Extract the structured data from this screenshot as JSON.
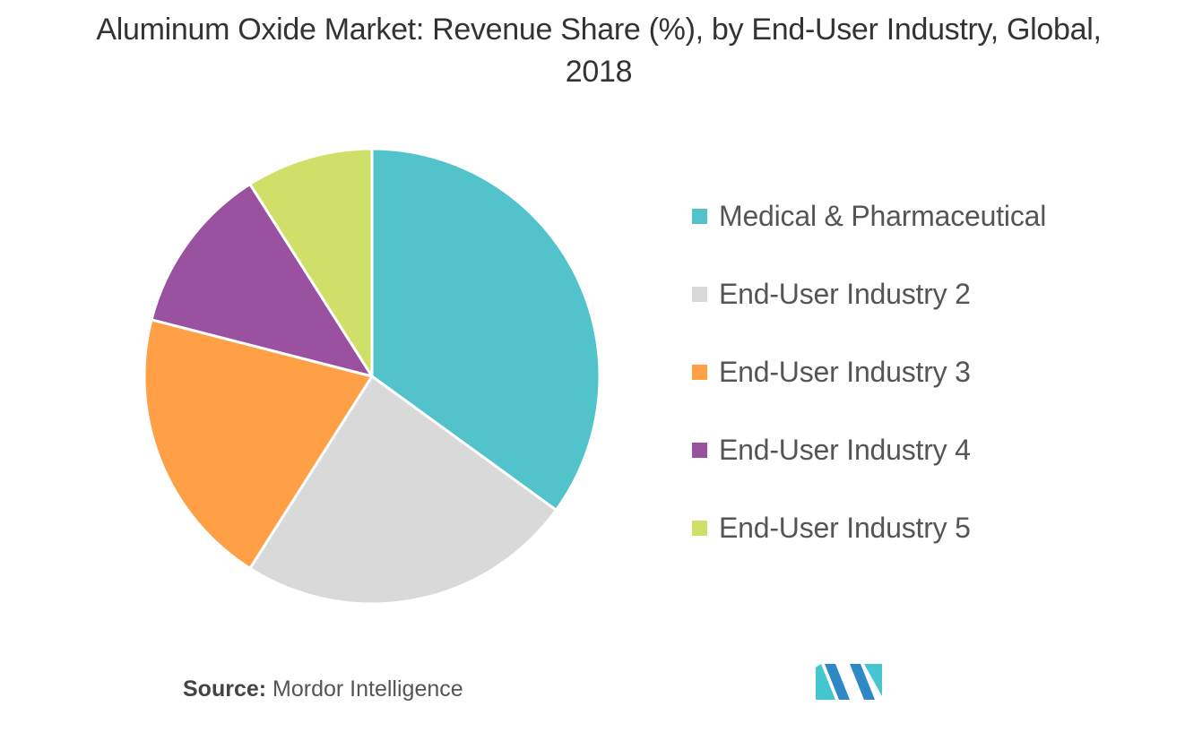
{
  "chart_data": {
    "type": "pie",
    "title": "Aluminum Oxide Market: Revenue Share (%), by End-User Industry, Global, 2018",
    "categories": [
      "Medical & Pharmaceutical",
      "End-User Industry 2",
      "End-User Industry 3",
      "End-User Industry 4",
      "End-User Industry 5"
    ],
    "values": [
      35,
      24,
      20,
      12,
      9
    ],
    "colors": [
      "#52c3cb",
      "#d9d9d9",
      "#ffa047",
      "#9a51a0",
      "#cfdf68"
    ],
    "legend_position": "right",
    "start_angle": "top",
    "direction": "clockwise"
  },
  "source": {
    "label": "Source:",
    "text": "Mordor Intelligence"
  },
  "logo": {
    "icon": "mordor-intelligence-logo-icon",
    "colors": [
      "#2d88c6",
      "#43c6d0"
    ]
  }
}
